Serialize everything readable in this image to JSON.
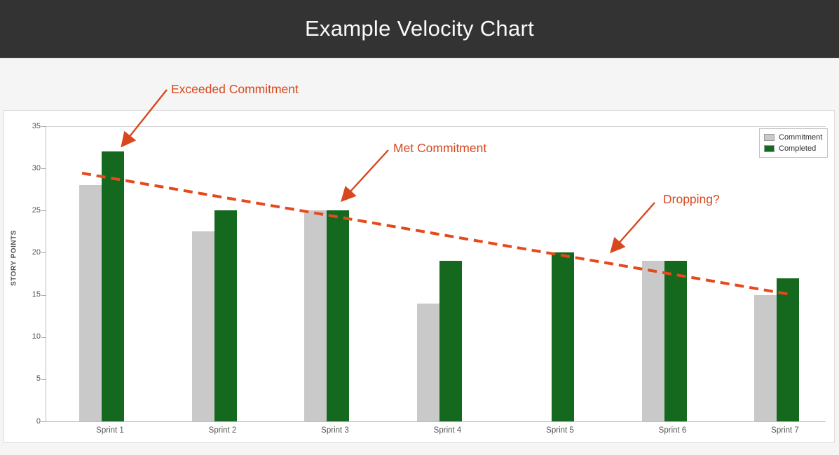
{
  "header": {
    "title": "Example Velocity Chart"
  },
  "annotations": {
    "exceeded": "Exceeded Commitment",
    "met": "Met Commitment",
    "dropping": "Dropping?"
  },
  "chart_data": {
    "type": "bar",
    "title": "Example Velocity Chart",
    "categories": [
      "Sprint 1",
      "Sprint 2",
      "Sprint 3",
      "Sprint 4",
      "Sprint 5",
      "Sprint 6",
      "Sprint 7"
    ],
    "series": [
      {
        "name": "Commitment",
        "color": "#c9c9c9",
        "values": [
          28,
          22.5,
          25,
          14,
          null,
          19,
          15
        ]
      },
      {
        "name": "Completed",
        "color": "#15691f",
        "values": [
          32,
          25,
          25,
          19,
          20,
          19,
          17
        ]
      }
    ],
    "xlabel": "",
    "ylabel": "STORY POINTS",
    "ylim": [
      0,
      35
    ],
    "yticks": [
      0,
      5,
      10,
      15,
      20,
      25,
      30,
      35
    ],
    "grid": false,
    "legend_position": "top-right",
    "trendline": {
      "style": "dashed",
      "color": "#e5491c",
      "start_value": 29.5,
      "end_value": 15
    }
  },
  "colors": {
    "header_bg": "#333333",
    "page_bg": "#f4f5f4",
    "panel_bg": "#ffffff",
    "commitment_bar": "#c9c9c9",
    "completed_bar": "#15691f",
    "annotation_red": "#d9471e"
  }
}
